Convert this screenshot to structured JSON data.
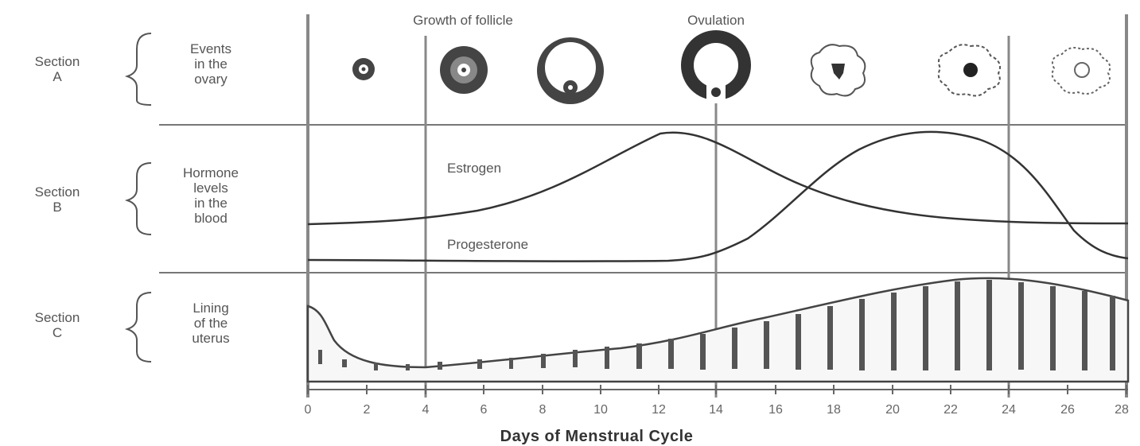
{
  "header": {
    "growth_label": "Growth of follicle",
    "ovulation_label": "Ovulation"
  },
  "sections": [
    {
      "name": "Section\nA",
      "desc": "Events\nin the\novary"
    },
    {
      "name": "Section\nB",
      "desc": "Hormone\nlevels\nin the\nblood"
    },
    {
      "name": "Section\nC",
      "desc": "Lining\nof the\nuterus"
    }
  ],
  "curves": {
    "estrogen": "Estrogen",
    "progesterone": "Progesterone"
  },
  "x_axis": {
    "ticks": [
      "0",
      "2",
      "4",
      "6",
      "8",
      "10",
      "12",
      "14",
      "16",
      "18",
      "20",
      "22",
      "24",
      "26",
      "28"
    ],
    "title": "Days of Menstrual Cycle"
  }
}
